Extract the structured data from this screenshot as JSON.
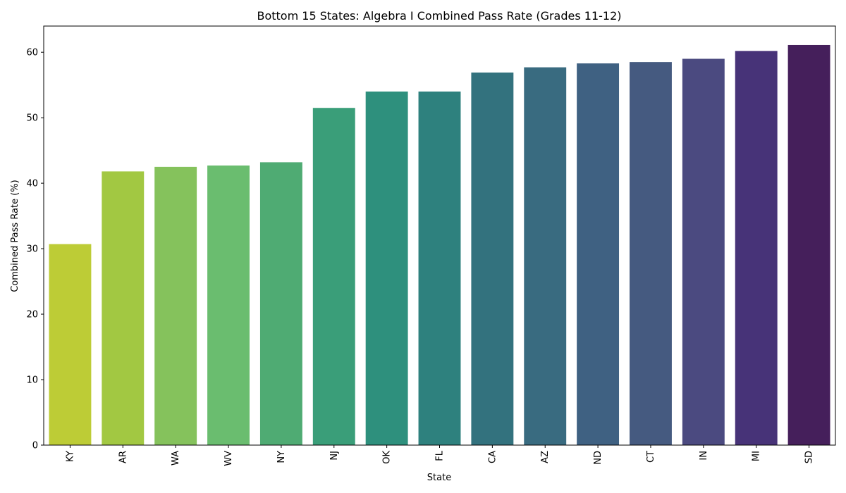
{
  "chart_data": {
    "type": "bar",
    "title": "Bottom 15 States: Algebra I Combined Pass Rate (Grades 11-12)",
    "xlabel": "State",
    "ylabel": "Combined Pass Rate (%)",
    "ylim": [
      0,
      64
    ],
    "yticks": [
      0,
      10,
      20,
      30,
      40,
      50,
      60
    ],
    "grid": false,
    "legend": "none",
    "categories": [
      "KY",
      "AR",
      "WA",
      "WV",
      "NY",
      "NJ",
      "OK",
      "FL",
      "CA",
      "AZ",
      "ND",
      "CT",
      "IN",
      "MI",
      "SD"
    ],
    "values": [
      30.7,
      41.8,
      42.5,
      42.7,
      43.2,
      51.5,
      54.0,
      54.0,
      56.9,
      57.7,
      58.3,
      58.5,
      59.0,
      60.2,
      61.1
    ],
    "colors": [
      "#bdcc36",
      "#a2c842",
      "#85c25c",
      "#6abd6f",
      "#4fab73",
      "#3a9e79",
      "#2e907d",
      "#2e817e",
      "#33727e",
      "#396b80",
      "#3f6182",
      "#455a80",
      "#4b4a80",
      "#473378",
      "#451f5b"
    ]
  }
}
